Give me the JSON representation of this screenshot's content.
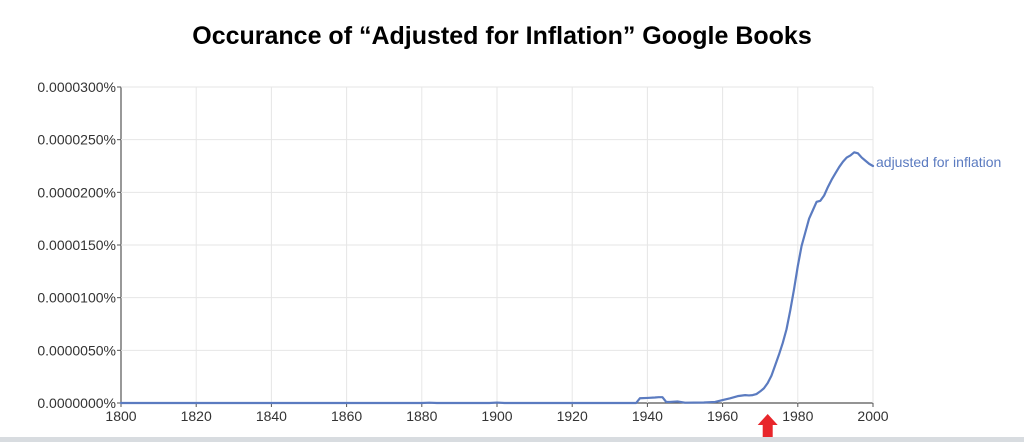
{
  "chart_data": {
    "type": "line",
    "title": "Occurance of “Adjusted for Inflation” Google Books",
    "xlabel": "",
    "ylabel": "",
    "xlim": [
      1800,
      2000
    ],
    "ylim": [
      0,
      3e-05
    ],
    "x_ticks": [
      "1800",
      "1820",
      "1840",
      "1860",
      "1880",
      "1900",
      "1920",
      "1940",
      "1960",
      "1980",
      "2000"
    ],
    "y_ticks": [
      "0.0000000%",
      "0.0000050%",
      "0.0000100%",
      "0.0000150%",
      "0.0000200%",
      "0.0000250%",
      "0.0000300%"
    ],
    "grid": true,
    "series": [
      {
        "name": "adjusted for inflation",
        "color": "#5b7bc0",
        "x": [
          1800,
          1880,
          1882,
          1884,
          1898,
          1900,
          1902,
          1904,
          1937,
          1938,
          1940,
          1942,
          1943,
          1944,
          1945,
          1946,
          1948,
          1950,
          1955,
          1958,
          1960,
          1962,
          1964,
          1966,
          1967,
          1968,
          1969,
          1970,
          1971,
          1972,
          1973,
          1974,
          1975,
          1976,
          1977,
          1978,
          1979,
          1980,
          1981,
          1982,
          1983,
          1984,
          1985,
          1986,
          1987,
          1988,
          1989,
          1990,
          1991,
          1992,
          1993,
          1994,
          1995,
          1996,
          1997,
          1998,
          1999,
          2000
        ],
        "values": [
          0,
          0,
          3e-08,
          0,
          0,
          4e-08,
          0,
          0,
          0,
          4.5e-07,
          4.8e-07,
          5.2e-07,
          5.5e-07,
          5.5e-07,
          1e-07,
          1e-07,
          1.5e-07,
          3e-08,
          5e-08,
          1e-07,
          2.8e-07,
          4.5e-07,
          6.5e-07,
          7.5e-07,
          7.2e-07,
          7.5e-07,
          8.5e-07,
          1.1e-06,
          1.4e-06,
          1.9e-06,
          2.6e-06,
          3.6e-06,
          4.6e-06,
          5.7e-06,
          7e-06,
          8.8e-06,
          1.08e-05,
          1.3e-05,
          1.49e-05,
          1.62e-05,
          1.75e-05,
          1.83e-05,
          1.91e-05,
          1.92e-05,
          1.97e-05,
          2.05e-05,
          2.12e-05,
          2.18e-05,
          2.24e-05,
          2.29e-05,
          2.33e-05,
          2.35e-05,
          2.38e-05,
          2.37e-05,
          2.33e-05,
          2.3e-05,
          2.27e-05,
          2.25e-05
        ]
      }
    ],
    "annotations": [
      {
        "type": "arrow",
        "direction": "up",
        "x": 1972,
        "color": "#e8262b"
      }
    ]
  }
}
